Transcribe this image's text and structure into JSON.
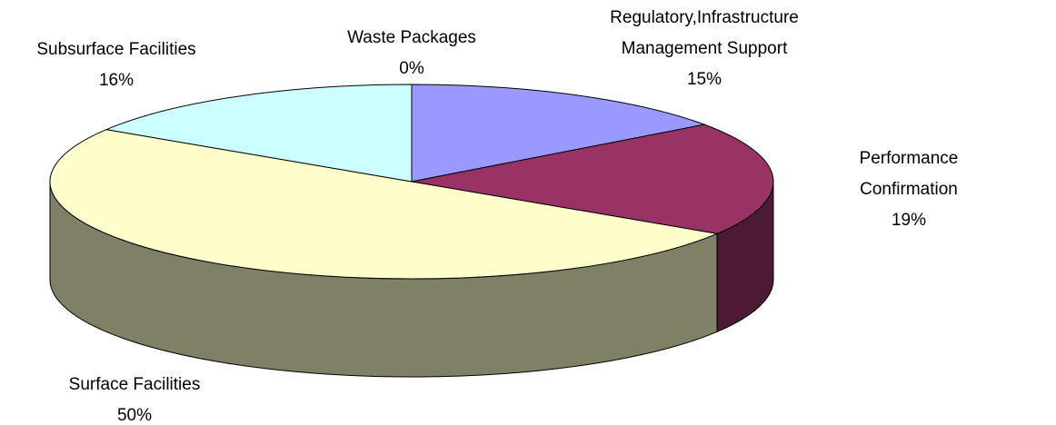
{
  "chart_data": {
    "type": "pie3d",
    "categories": [
      "Regulatory,Infrastructure\nManagement Support",
      "Performance Confirmation",
      "Surface Facilities",
      "Subsurface Facilities",
      "Waste Packages"
    ],
    "values": [
      15,
      19,
      50,
      16,
      0
    ],
    "value_labels": [
      "15%",
      "19%",
      "50%",
      "16%",
      "0%"
    ],
    "colors": [
      "#9999ff",
      "#993366",
      "#ffffcc",
      "#ccffff",
      "#660066"
    ]
  }
}
